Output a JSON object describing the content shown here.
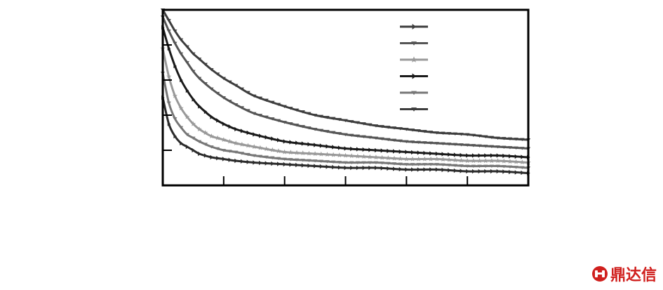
{
  "chart_data": {
    "type": "line",
    "title": "",
    "xlabel": "",
    "ylabel": "",
    "xlim": [
      0,
      6
    ],
    "ylim": [
      0,
      1
    ],
    "grid": false,
    "legend_position": "top-right",
    "x_ticks": [
      1,
      2,
      3,
      4,
      5
    ],
    "y_ticks": [
      0.2,
      0.4,
      0.6,
      0.8
    ],
    "x": [
      0,
      0.1,
      0.2,
      0.3,
      0.4,
      0.5,
      0.6,
      0.8,
      1.0,
      1.2,
      1.5,
      2.0,
      2.5,
      3.0,
      3.5,
      4.0,
      4.5,
      5.0,
      5.5,
      6.0
    ],
    "series": [
      {
        "color": "#3d3d3d",
        "marker": "triangle-down",
        "values": [
          1.0,
          0.94,
          0.88,
          0.83,
          0.79,
          0.75,
          0.72,
          0.66,
          0.61,
          0.57,
          0.51,
          0.45,
          0.4,
          0.37,
          0.34,
          0.32,
          0.3,
          0.29,
          0.27,
          0.26
        ]
      },
      {
        "color": "#555555",
        "marker": "triangle-down",
        "values": [
          0.96,
          0.88,
          0.81,
          0.75,
          0.7,
          0.65,
          0.61,
          0.55,
          0.5,
          0.46,
          0.41,
          0.36,
          0.32,
          0.29,
          0.27,
          0.25,
          0.24,
          0.23,
          0.22,
          0.21
        ]
      },
      {
        "color": "#1a1a1a",
        "marker": "triangle-right",
        "values": [
          0.9,
          0.78,
          0.68,
          0.6,
          0.54,
          0.49,
          0.45,
          0.39,
          0.35,
          0.32,
          0.29,
          0.25,
          0.23,
          0.21,
          0.2,
          0.19,
          0.18,
          0.17,
          0.17,
          0.16
        ]
      },
      {
        "color": "#999999",
        "marker": "star",
        "values": [
          0.78,
          0.62,
          0.51,
          0.44,
          0.39,
          0.35,
          0.32,
          0.28,
          0.26,
          0.24,
          0.22,
          0.19,
          0.18,
          0.17,
          0.16,
          0.15,
          0.15,
          0.14,
          0.14,
          0.13
        ]
      },
      {
        "color": "#777777",
        "marker": "triangle-down",
        "values": [
          0.64,
          0.47,
          0.38,
          0.33,
          0.29,
          0.27,
          0.25,
          0.22,
          0.2,
          0.19,
          0.17,
          0.15,
          0.14,
          0.13,
          0.13,
          0.12,
          0.12,
          0.11,
          0.11,
          0.1
        ]
      },
      {
        "color": "#2b2b2b",
        "marker": "triangle-right",
        "values": [
          0.5,
          0.35,
          0.28,
          0.24,
          0.22,
          0.2,
          0.18,
          0.16,
          0.15,
          0.14,
          0.13,
          0.12,
          0.11,
          0.1,
          0.1,
          0.09,
          0.09,
          0.08,
          0.08,
          0.07
        ]
      }
    ],
    "legend": [
      {
        "color": "#3d3d3d",
        "marker": "triangle-right"
      },
      {
        "color": "#555555",
        "marker": "triangle-down"
      },
      {
        "color": "#999999",
        "marker": "star"
      },
      {
        "color": "#1a1a1a",
        "marker": "triangle-right"
      },
      {
        "color": "#777777",
        "marker": "triangle-down"
      },
      {
        "color": "#3d3d3d",
        "marker": "triangle-down"
      }
    ]
  },
  "watermark": {
    "text": "鼎达信",
    "color": "#d0201e",
    "icon": "brand-logo-icon"
  }
}
